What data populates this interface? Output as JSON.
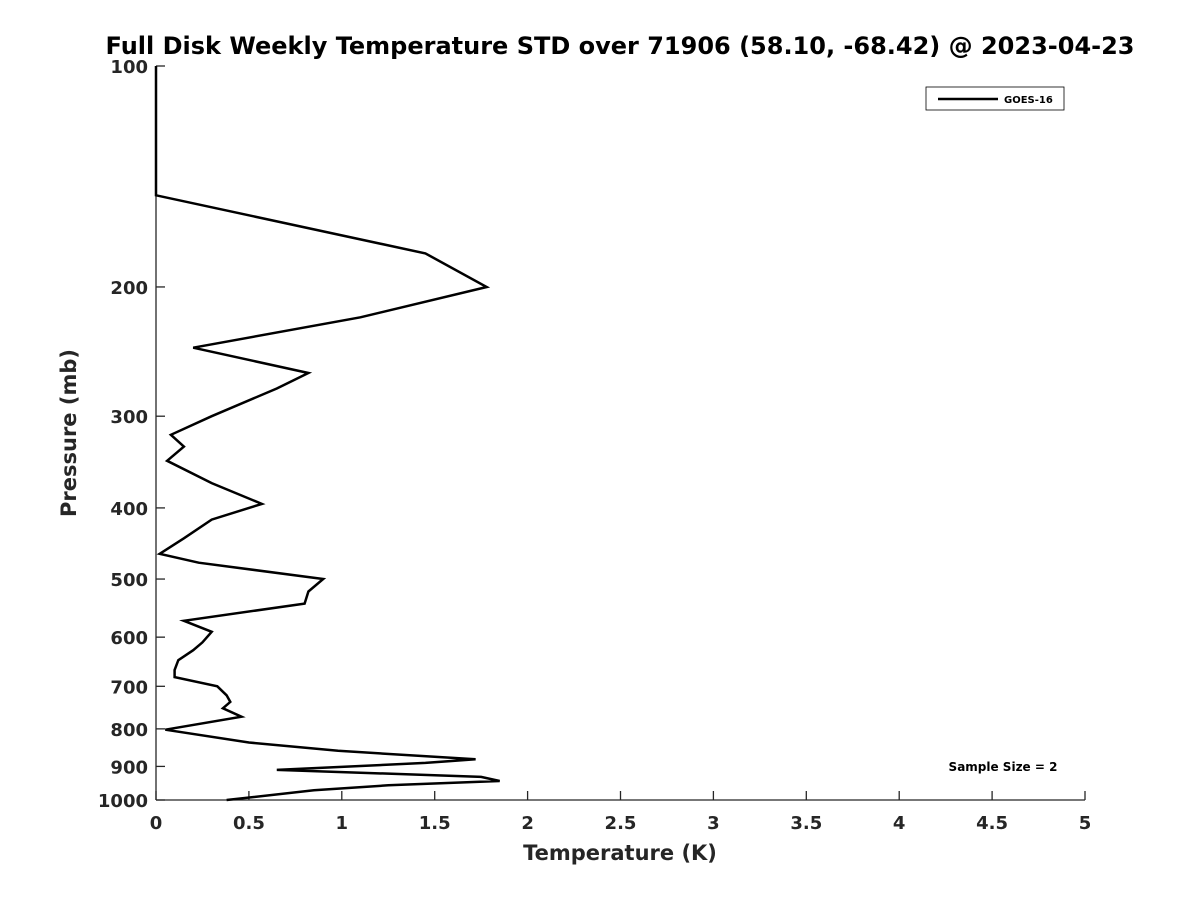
{
  "chart_data": {
    "type": "line",
    "title": "Full Disk Weekly Temperature STD over 71906 (58.10, -68.42) @ 2023-04-23",
    "xlabel": "Temperature (K)",
    "ylabel": "Pressure (mb)",
    "xlim": [
      0,
      5
    ],
    "ylim": [
      100,
      1000
    ],
    "y_scale": "log",
    "y_reversed": true,
    "x_ticks": [
      "0",
      "0.5",
      "1",
      "1.5",
      "2",
      "2.5",
      "3",
      "3.5",
      "4",
      "4.5",
      "5"
    ],
    "y_ticks": [
      "100",
      "200",
      "300",
      "400",
      "500",
      "600",
      "700",
      "800",
      "900",
      "1000"
    ],
    "grid": false,
    "legend": {
      "position": "top-right",
      "entries": [
        "GOES-16"
      ]
    },
    "annotation": "Sample Size = 2",
    "series": [
      {
        "name": "GOES-16",
        "color": "#000000",
        "points": [
          [
            0,
            100
          ],
          [
            0,
            150
          ],
          [
            1.45,
            180
          ],
          [
            1.78,
            200
          ],
          [
            1.1,
            220
          ],
          [
            0.2,
            242
          ],
          [
            0.82,
            262
          ],
          [
            0.65,
            275
          ],
          [
            0.3,
            300
          ],
          [
            0.08,
            318
          ],
          [
            0.15,
            330
          ],
          [
            0.06,
            345
          ],
          [
            0.3,
            370
          ],
          [
            0.57,
            395
          ],
          [
            0.3,
            415
          ],
          [
            0.15,
            440
          ],
          [
            0.02,
            462
          ],
          [
            0.23,
            475
          ],
          [
            0.9,
            500
          ],
          [
            0.82,
            520
          ],
          [
            0.8,
            540
          ],
          [
            0.15,
            570
          ],
          [
            0.3,
            590
          ],
          [
            0.25,
            610
          ],
          [
            0.2,
            625
          ],
          [
            0.12,
            645
          ],
          [
            0.1,
            665
          ],
          [
            0.1,
            680
          ],
          [
            0.33,
            700
          ],
          [
            0.38,
            720
          ],
          [
            0.4,
            735
          ],
          [
            0.36,
            750
          ],
          [
            0.46,
            770
          ],
          [
            0.05,
            802
          ],
          [
            0.5,
            835
          ],
          [
            0.98,
            857
          ],
          [
            1.72,
            880
          ],
          [
            1.45,
            890
          ],
          [
            0.65,
            910
          ],
          [
            1.1,
            918
          ],
          [
            1.75,
            930
          ],
          [
            1.85,
            942
          ],
          [
            1.25,
            955
          ],
          [
            0.85,
            970
          ],
          [
            0.38,
            1000
          ]
        ]
      }
    ]
  }
}
